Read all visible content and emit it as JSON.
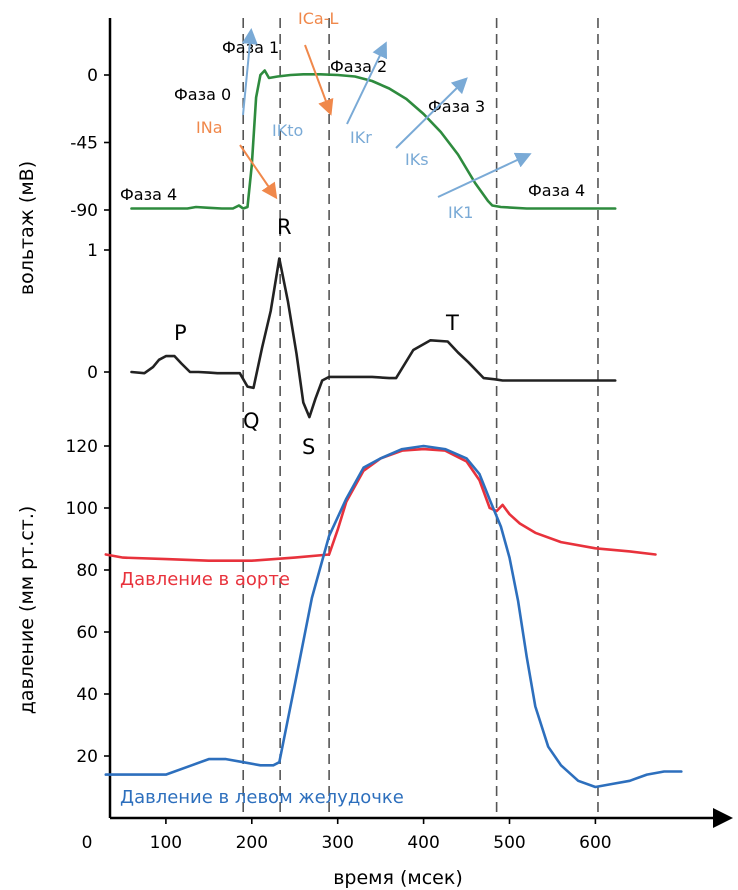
{
  "chart_data": [
    {
      "type": "line",
      "panel": "action-potential",
      "ylabel": "вольтаж (мВ)",
      "yticks": [
        0,
        -45,
        -90
      ],
      "ylim": [
        -95,
        18
      ],
      "series": [
        {
          "color": "#2e8b3e",
          "x": [
            60,
            100,
            125,
            135,
            150,
            165,
            178,
            185,
            190,
            195,
            200,
            205,
            210,
            215,
            220,
            230,
            245,
            260,
            280,
            300,
            320,
            340,
            360,
            380,
            400,
            420,
            440,
            460,
            475,
            480,
            490,
            520,
            560,
            600,
            623
          ],
          "y": [
            -89,
            -89,
            -89,
            -88,
            -88.5,
            -89,
            -89,
            -87,
            -89,
            -88,
            -60,
            -15,
            0,
            3,
            -2,
            -1,
            0,
            0.5,
            0.5,
            0,
            -1,
            -4,
            -9,
            -16,
            -26,
            -38,
            -53,
            -72,
            -84,
            -87,
            -88,
            -89,
            -89,
            -89,
            -89
          ]
        }
      ],
      "phase_labels": [
        "Фаза 0",
        "Фаза 1",
        "Фаза 2",
        "Фаза 3",
        "Фаза 4",
        "Фаза 4"
      ],
      "ion_currents": [
        {
          "name": "INa",
          "color": "#f0884b"
        },
        {
          "name": "ICa-L",
          "color": "#f0884b"
        },
        {
          "name": "IKto",
          "color": "#7aaad6"
        },
        {
          "name": "IKr",
          "color": "#7aaad6"
        },
        {
          "name": "IKs",
          "color": "#7aaad6"
        },
        {
          "name": "IK1",
          "color": "#7aaad6"
        }
      ]
    },
    {
      "type": "line",
      "panel": "ecg",
      "yticks": [
        1,
        0
      ],
      "ylim": [
        -0.4,
        1.05
      ],
      "series": [
        {
          "color": "#222222",
          "x": [
            60,
            75,
            85,
            92,
            100,
            110,
            118,
            128,
            138,
            150,
            160,
            175,
            186,
            195,
            202,
            212,
            222,
            232,
            242,
            252,
            260,
            267,
            274,
            282,
            290,
            300,
            320,
            340,
            360,
            368,
            388,
            408,
            428,
            440,
            452,
            470,
            483,
            492,
            530,
            580,
            623
          ],
          "y": [
            0,
            -0.01,
            0.04,
            0.1,
            0.13,
            0.13,
            0.07,
            0.0,
            0.0,
            -0.005,
            -0.01,
            -0.01,
            -0.01,
            -0.12,
            -0.13,
            0.2,
            0.5,
            0.93,
            0.58,
            0.15,
            -0.25,
            -0.37,
            -0.22,
            -0.07,
            -0.04,
            -0.04,
            -0.04,
            -0.04,
            -0.05,
            -0.05,
            0.18,
            0.26,
            0.25,
            0.16,
            0.08,
            -0.05,
            -0.06,
            -0.07,
            -0.07,
            -0.07,
            -0.07
          ]
        }
      ],
      "wave_labels": [
        "P",
        "Q",
        "R",
        "S",
        "T"
      ]
    },
    {
      "type": "line",
      "panel": "pressure",
      "xlabel": "время (мсек)",
      "ylabel": "давление (мм рт.ст.)",
      "xticks": [
        0,
        100,
        200,
        300,
        400,
        500,
        600
      ],
      "yticks": [
        20,
        40,
        60,
        80,
        100,
        120
      ],
      "xlim": [
        0,
        700
      ],
      "ylim": [
        0,
        130
      ],
      "series": [
        {
          "name": "Давление в аорте",
          "color": "#e8323c",
          "x": [
            30,
            50,
            100,
            150,
            200,
            250,
            290,
            300,
            310,
            330,
            350,
            375,
            400,
            425,
            450,
            465,
            477,
            485,
            492,
            500,
            512,
            530,
            560,
            600,
            640,
            670
          ],
          "y": [
            85,
            84,
            83.5,
            83,
            83,
            84,
            85,
            93,
            102,
            112,
            116,
            118.5,
            119,
            118.5,
            115,
            109,
            100,
            99,
            101,
            98,
            95,
            92,
            89,
            87,
            86,
            85
          ]
        },
        {
          "name": "Давление в левом желудочке",
          "color": "#2d6fbd",
          "x": [
            30,
            50,
            80,
            100,
            130,
            150,
            170,
            190,
            210,
            225,
            232,
            250,
            270,
            290,
            310,
            330,
            350,
            375,
            400,
            425,
            450,
            465,
            478,
            490,
            500,
            510,
            520,
            530,
            545,
            560,
            580,
            600,
            620,
            640,
            660,
            680,
            700
          ],
          "y": [
            14,
            14,
            14,
            14,
            17,
            19,
            19,
            18,
            17,
            17,
            18,
            43,
            71,
            91,
            103,
            113,
            116,
            119,
            120,
            119,
            116,
            111,
            102,
            94,
            84,
            70,
            52,
            36,
            23,
            17,
            12,
            10,
            11,
            12,
            14,
            15,
            15
          ]
        }
      ]
    }
  ]
}
